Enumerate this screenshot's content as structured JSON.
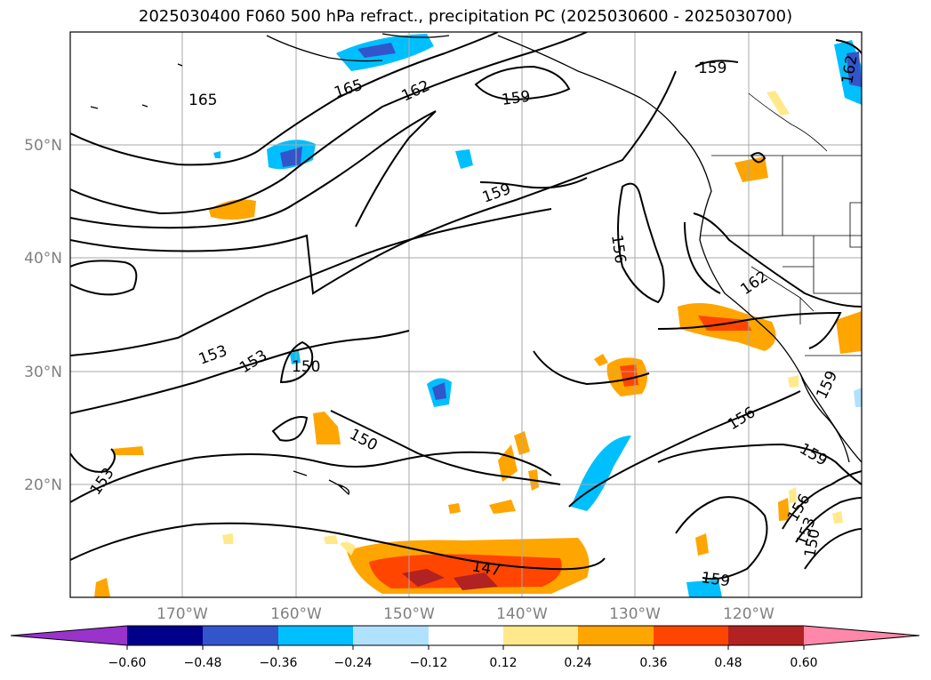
{
  "title": "2025030400 F060 500 hPa refract., precipitation PC (2025030600 - 2025030700)",
  "lat_labels": [
    "50°N",
    "40°N",
    "30°N",
    "20°N"
  ],
  "lon_labels": [
    "170°W",
    "160°W",
    "150°W",
    "140°W",
    "130°W",
    "120°W"
  ],
  "contour_labels": [
    "165",
    "165",
    "162",
    "159",
    "159",
    "159",
    "156",
    "162",
    "153",
    "153",
    "150",
    "150",
    "147",
    "156",
    "159",
    "159",
    "156",
    "153",
    "150",
    "153",
    "162",
    "159"
  ],
  "colorbar": {
    "ticks": [
      "−0.60",
      "−0.48",
      "−0.36",
      "−0.24",
      "−0.12",
      "0.12",
      "0.24",
      "0.36",
      "0.48",
      "0.60"
    ],
    "colors": [
      "#9933cc",
      "#00008b",
      "#3355cc",
      "#00bfff",
      "#b0e2ff",
      "#ffffff",
      "#ffe98a",
      "#ffa500",
      "#ff4500",
      "#b22222",
      "#ff88aa"
    ]
  }
}
